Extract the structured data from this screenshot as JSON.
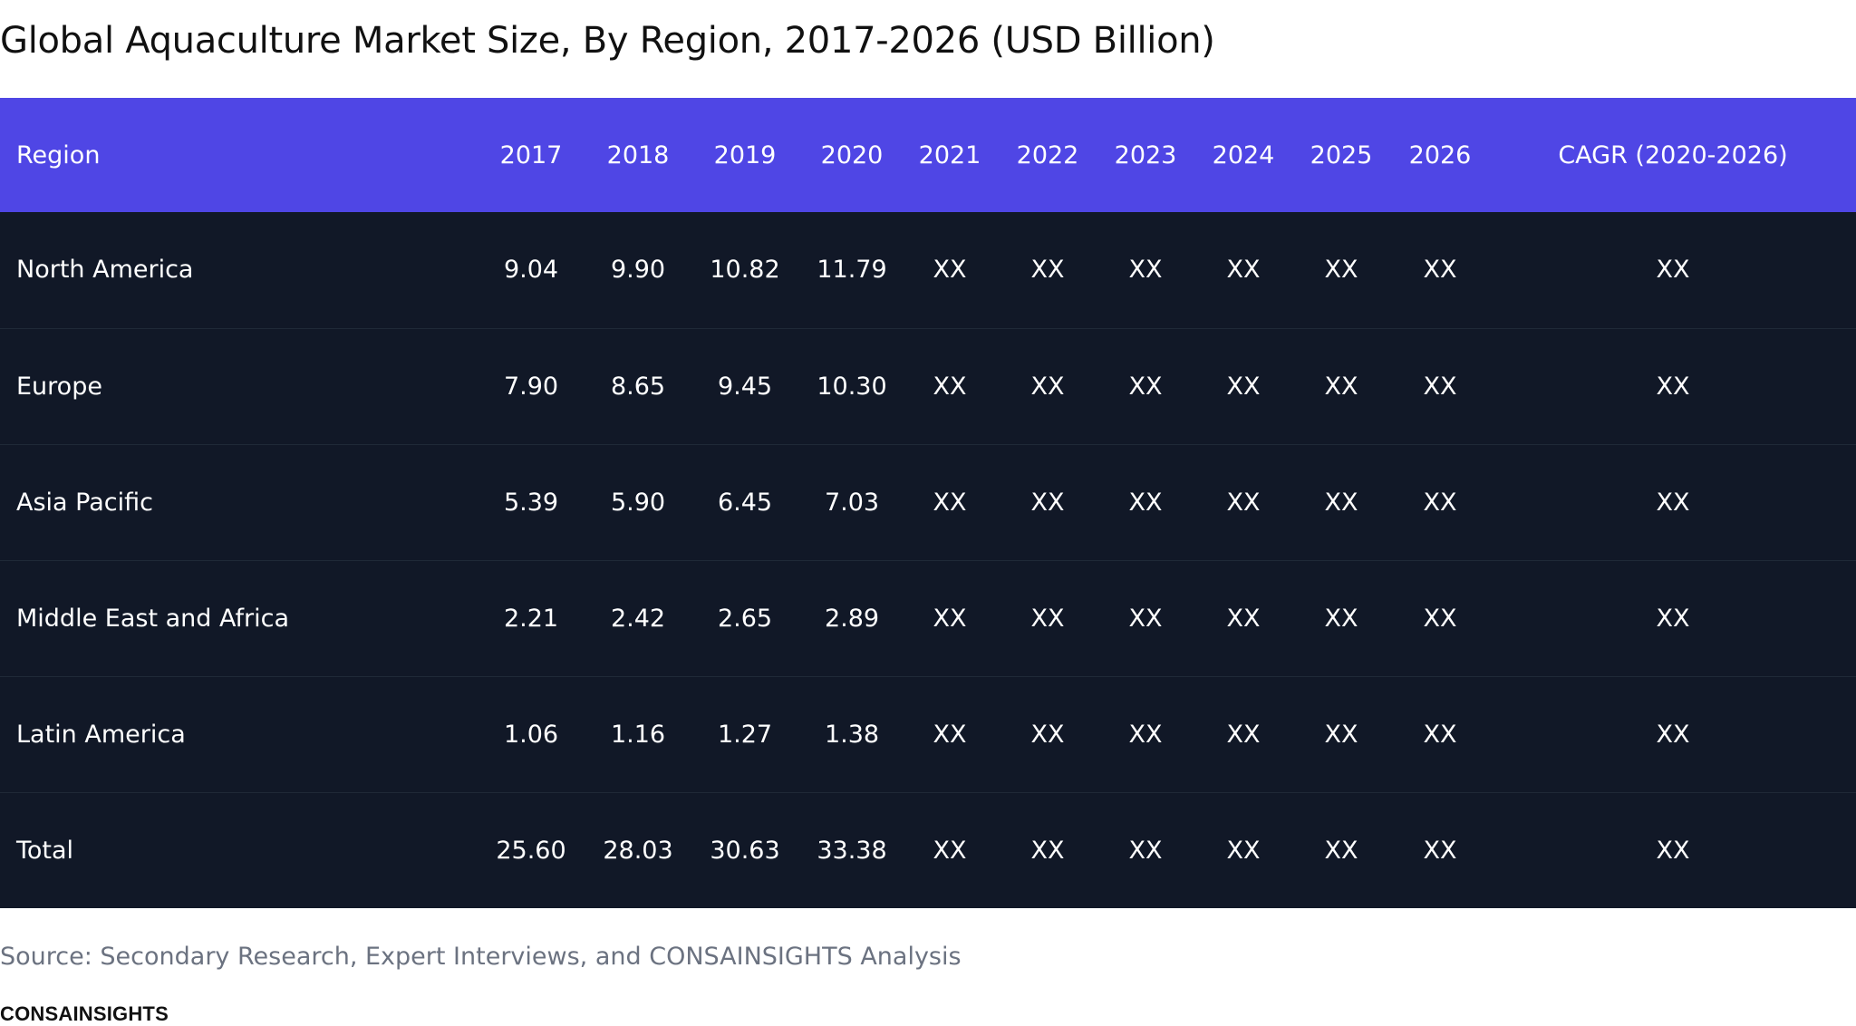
{
  "chart_data": {
    "type": "table",
    "title": "Global Aquaculture Market Size, By Region, 2017-2026 (USD Billion)",
    "columns": [
      "Region",
      "2017",
      "2018",
      "2019",
      "2020",
      "2021",
      "2022",
      "2023",
      "2024",
      "2025",
      "2026",
      "CAGR (2020-2026)"
    ],
    "rows": [
      [
        "North America",
        "9.04",
        "9.90",
        "10.82",
        "11.79",
        "XX",
        "XX",
        "XX",
        "XX",
        "XX",
        "XX",
        "XX"
      ],
      [
        "Europe",
        "7.90",
        "8.65",
        "9.45",
        "10.30",
        "XX",
        "XX",
        "XX",
        "XX",
        "XX",
        "XX",
        "XX"
      ],
      [
        "Asia Pacific",
        "5.39",
        "5.90",
        "6.45",
        "7.03",
        "XX",
        "XX",
        "XX",
        "XX",
        "XX",
        "XX",
        "XX"
      ],
      [
        "Middle East and Africa",
        "2.21",
        "2.42",
        "2.65",
        "2.89",
        "XX",
        "XX",
        "XX",
        "XX",
        "XX",
        "XX",
        "XX"
      ],
      [
        "Latin America",
        "1.06",
        "1.16",
        "1.27",
        "1.38",
        "XX",
        "XX",
        "XX",
        "XX",
        "XX",
        "XX",
        "XX"
      ],
      [
        "Total",
        "25.60",
        "28.03",
        "30.63",
        "33.38",
        "XX",
        "XX",
        "XX",
        "XX",
        "XX",
        "XX",
        "XX"
      ]
    ],
    "source": "Source: Secondary Research, Expert Interviews, and CONSAINSIGHTS Analysis",
    "brand": "CONSAINSIGHTS",
    "colors": {
      "header_bg": "#4f46e5",
      "body_bg": "#111827",
      "row_divider": "#1f2937",
      "source_text": "#6b7280"
    }
  }
}
